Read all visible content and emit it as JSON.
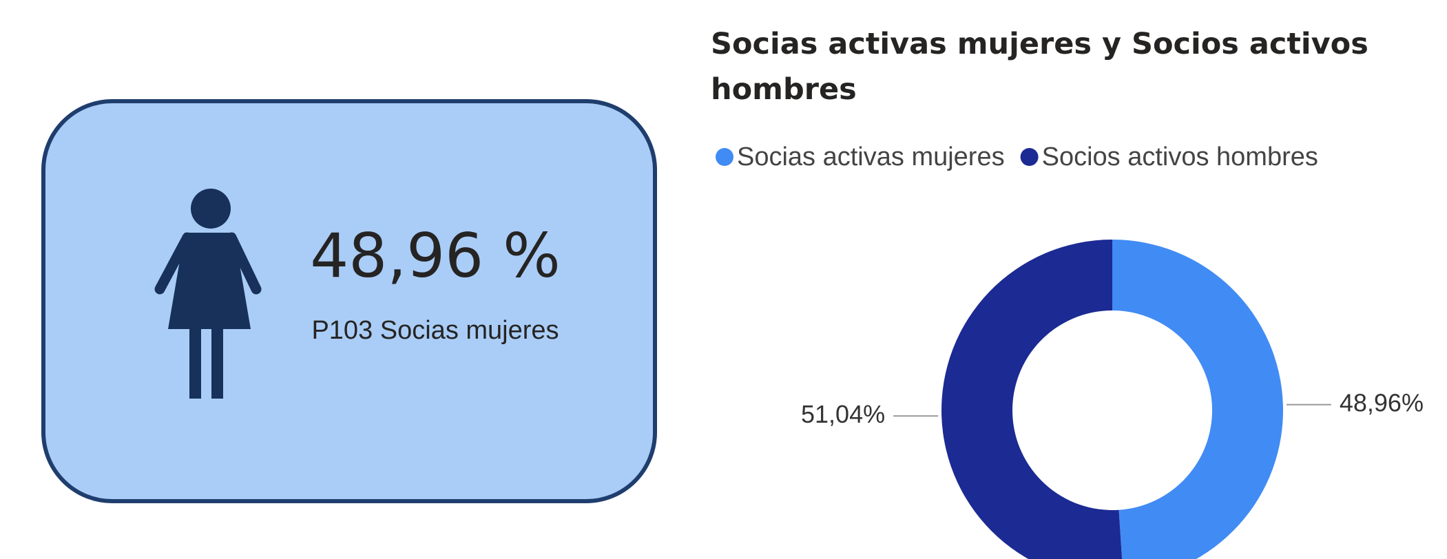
{
  "card": {
    "value": "48,96 %",
    "label": "P103 Socias mujeres"
  },
  "chart_data": {
    "type": "donut",
    "title": "Socias activas mujeres y Socios activos hombres",
    "categories": [
      "Socias activas mujeres",
      "Socios activos hombres"
    ],
    "values": [
      48.96,
      51.04
    ],
    "value_labels": [
      "48,96%",
      "51,04%"
    ],
    "colors": [
      "#418bf4",
      "#1c2a93"
    ]
  }
}
